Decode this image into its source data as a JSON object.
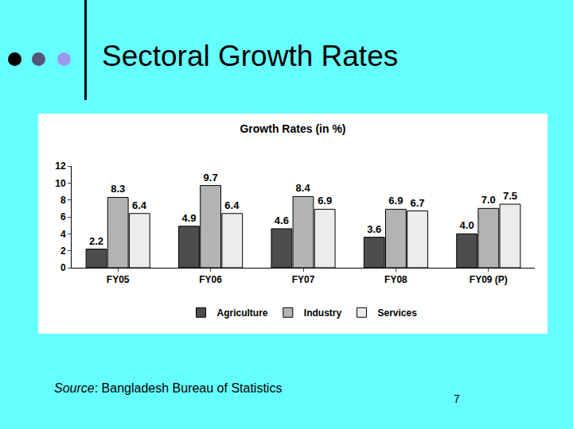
{
  "slide": {
    "title": "Sectoral Growth Rates",
    "source_label": "Source",
    "source_text": ": Bangladesh Bureau of Statistics",
    "page": "7"
  },
  "chart_data": {
    "type": "bar",
    "title": "Growth Rates (in %)",
    "categories": [
      "FY05",
      "FY06",
      "FY07",
      "FY08",
      "FY09 (P)"
    ],
    "series": [
      {
        "name": "Agriculture",
        "color": "#4d4d4d",
        "values": [
          2.2,
          4.9,
          4.6,
          3.6,
          4.0
        ],
        "value_labels": [
          "2.2",
          "4.9",
          "4.6",
          "3.6",
          "4.0"
        ]
      },
      {
        "name": "Industry",
        "color": "#b3b3b3",
        "values": [
          8.3,
          9.7,
          8.4,
          6.9,
          7.0
        ],
        "value_labels": [
          "8.3",
          "9.7",
          "8.4",
          "6.9",
          "7.0"
        ]
      },
      {
        "name": "Services",
        "color": "#ececec",
        "values": [
          6.4,
          6.4,
          6.9,
          6.7,
          7.5
        ],
        "value_labels": [
          "6.4",
          "6.4",
          "6.9",
          "6.7",
          "7.5"
        ]
      }
    ],
    "ylim": [
      0,
      12
    ],
    "yticks": [
      0,
      2,
      4,
      6,
      8,
      10,
      12
    ],
    "grid": false,
    "legend": "bottom",
    "data_labels": true
  }
}
